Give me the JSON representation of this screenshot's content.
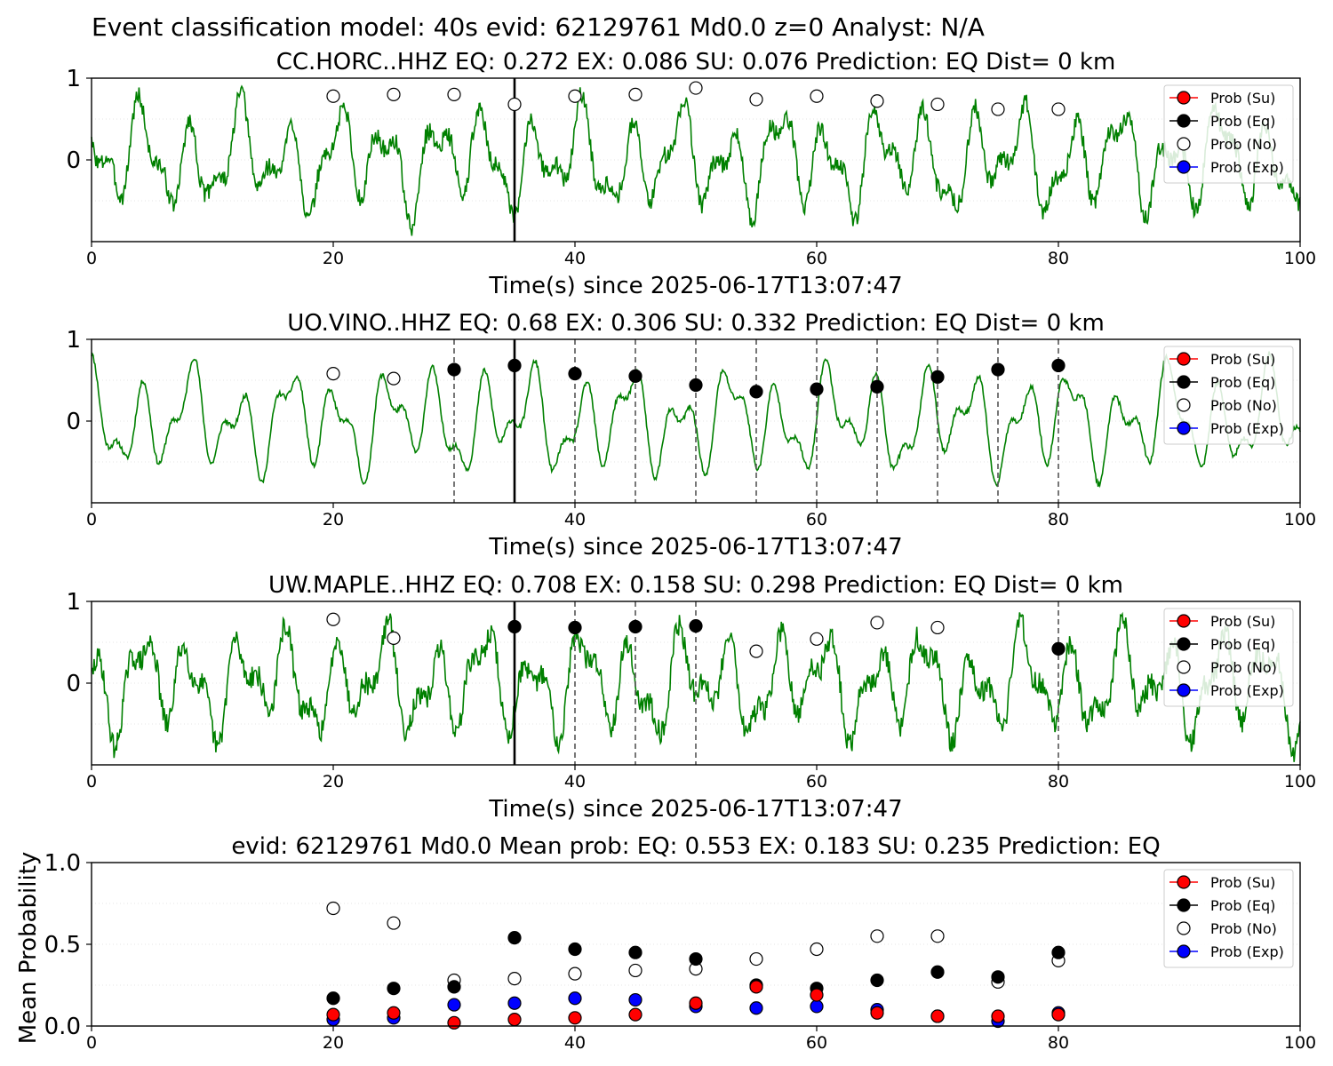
{
  "suptitle": "Event classification model: 40s evid: 62129761 Md0.0 z=0 Analyst: N/A",
  "legend": [
    "Prob (Su)",
    "Prob (Eq)",
    "Prob (No)",
    "Prob (Exp)"
  ],
  "colors": {
    "waveform": "#008000",
    "su": "#ff0000",
    "eq": "#000000",
    "no": "#ffffff",
    "exp": "#0000ff",
    "pick": "#000000",
    "window_line": "#555555"
  },
  "chart_data": [
    {
      "type": "line",
      "title": "CC.HORC..HHZ   EQ: 0.272  EX: 0.086  SU: 0.076   Prediction: EQ    Dist= 0 km",
      "xlabel": "Time(s) since 2025-06-17T13:07:47",
      "xlim": [
        0,
        100
      ],
      "ylim": [
        -1,
        1
      ],
      "xticks": [
        "0",
        "20",
        "40",
        "60",
        "80",
        "100"
      ],
      "yticks": [
        "1",
        "0"
      ],
      "pick_time": 35,
      "eq_window_lines": [],
      "points_no": [
        [
          20,
          0.78
        ],
        [
          25,
          0.8
        ],
        [
          30,
          0.8
        ],
        [
          35,
          0.68
        ],
        [
          40,
          0.78
        ],
        [
          45,
          0.8
        ],
        [
          50,
          0.88
        ],
        [
          55,
          0.74
        ],
        [
          60,
          0.78
        ],
        [
          65,
          0.72
        ],
        [
          70,
          0.68
        ],
        [
          75,
          0.62
        ],
        [
          80,
          0.62
        ]
      ],
      "points_eq": [],
      "seed": 3,
      "noise": 0.22
    },
    {
      "type": "line",
      "title": "UO.VINO..HHZ   EQ: 0.68  EX: 0.306  SU: 0.332   Prediction: EQ    Dist= 0 km",
      "xlabel": "Time(s) since 2025-06-17T13:07:47",
      "xlim": [
        0,
        100
      ],
      "ylim": [
        -1,
        1
      ],
      "xticks": [
        "0",
        "20",
        "40",
        "60",
        "80",
        "100"
      ],
      "yticks": [
        "1",
        "0"
      ],
      "pick_time": 35,
      "eq_window_lines": [
        30,
        40,
        45,
        50,
        55,
        60,
        65,
        70,
        75,
        80
      ],
      "points_no": [
        [
          20,
          0.58
        ],
        [
          25,
          0.52
        ]
      ],
      "points_eq": [
        [
          30,
          0.63
        ],
        [
          35,
          0.68
        ],
        [
          40,
          0.58
        ],
        [
          45,
          0.55
        ],
        [
          50,
          0.44
        ],
        [
          55,
          0.36
        ],
        [
          60,
          0.39
        ],
        [
          65,
          0.42
        ],
        [
          70,
          0.54
        ],
        [
          75,
          0.63
        ],
        [
          80,
          0.68
        ]
      ],
      "seed": 11,
      "noise": 0.06
    },
    {
      "type": "line",
      "title": "UW.MAPLE..HHZ   EQ: 0.708  EX: 0.158  SU: 0.298   Prediction: EQ    Dist= 0 km",
      "xlabel": "Time(s) since 2025-06-17T13:07:47",
      "xlim": [
        0,
        100
      ],
      "ylim": [
        -1,
        1
      ],
      "xticks": [
        "0",
        "20",
        "40",
        "60",
        "80",
        "100"
      ],
      "yticks": [
        "1",
        "0"
      ],
      "pick_time": 35,
      "eq_window_lines": [
        40,
        45,
        50,
        80
      ],
      "points_no": [
        [
          20,
          0.78
        ],
        [
          25,
          0.55
        ],
        [
          55,
          0.39
        ],
        [
          60,
          0.54
        ],
        [
          65,
          0.74
        ],
        [
          70,
          0.68
        ]
      ],
      "points_eq": [
        [
          35,
          0.69
        ],
        [
          40,
          0.68
        ],
        [
          45,
          0.69
        ],
        [
          50,
          0.7
        ],
        [
          80,
          0.42
        ]
      ],
      "seed": 29,
      "noise": 0.28
    },
    {
      "type": "scatter",
      "title": "evid: 62129761  Md0.0   Mean prob:   EQ: 0.553  EX: 0.183  SU: 0.235   Prediction: EQ",
      "ylabel": "Mean Probability",
      "xlim": [
        0,
        100
      ],
      "ylim": [
        0,
        1
      ],
      "xticks": [
        "0",
        "20",
        "40",
        "60",
        "80",
        "100"
      ],
      "yticks": [
        "1.0",
        "0.5",
        "0.0"
      ],
      "x": [
        20,
        25,
        30,
        35,
        40,
        45,
        50,
        55,
        60,
        65,
        70,
        75,
        80
      ],
      "series": [
        {
          "name": "Prob (No)",
          "values": [
            0.72,
            0.63,
            0.28,
            0.29,
            0.32,
            0.34,
            0.35,
            0.41,
            0.47,
            0.55,
            0.55,
            0.27,
            0.4
          ]
        },
        {
          "name": "Prob (Eq)",
          "values": [
            0.17,
            0.23,
            0.24,
            0.54,
            0.47,
            0.45,
            0.41,
            0.25,
            0.23,
            0.28,
            0.33,
            0.3,
            0.45
          ]
        },
        {
          "name": "Prob (Exp)",
          "values": [
            0.04,
            0.05,
            0.13,
            0.14,
            0.17,
            0.16,
            0.12,
            0.11,
            0.12,
            0.1,
            0.06,
            0.03,
            0.08
          ]
        },
        {
          "name": "Prob (Su)",
          "values": [
            0.07,
            0.08,
            0.02,
            0.04,
            0.05,
            0.07,
            0.14,
            0.24,
            0.19,
            0.08,
            0.06,
            0.06,
            0.07
          ]
        }
      ]
    }
  ]
}
